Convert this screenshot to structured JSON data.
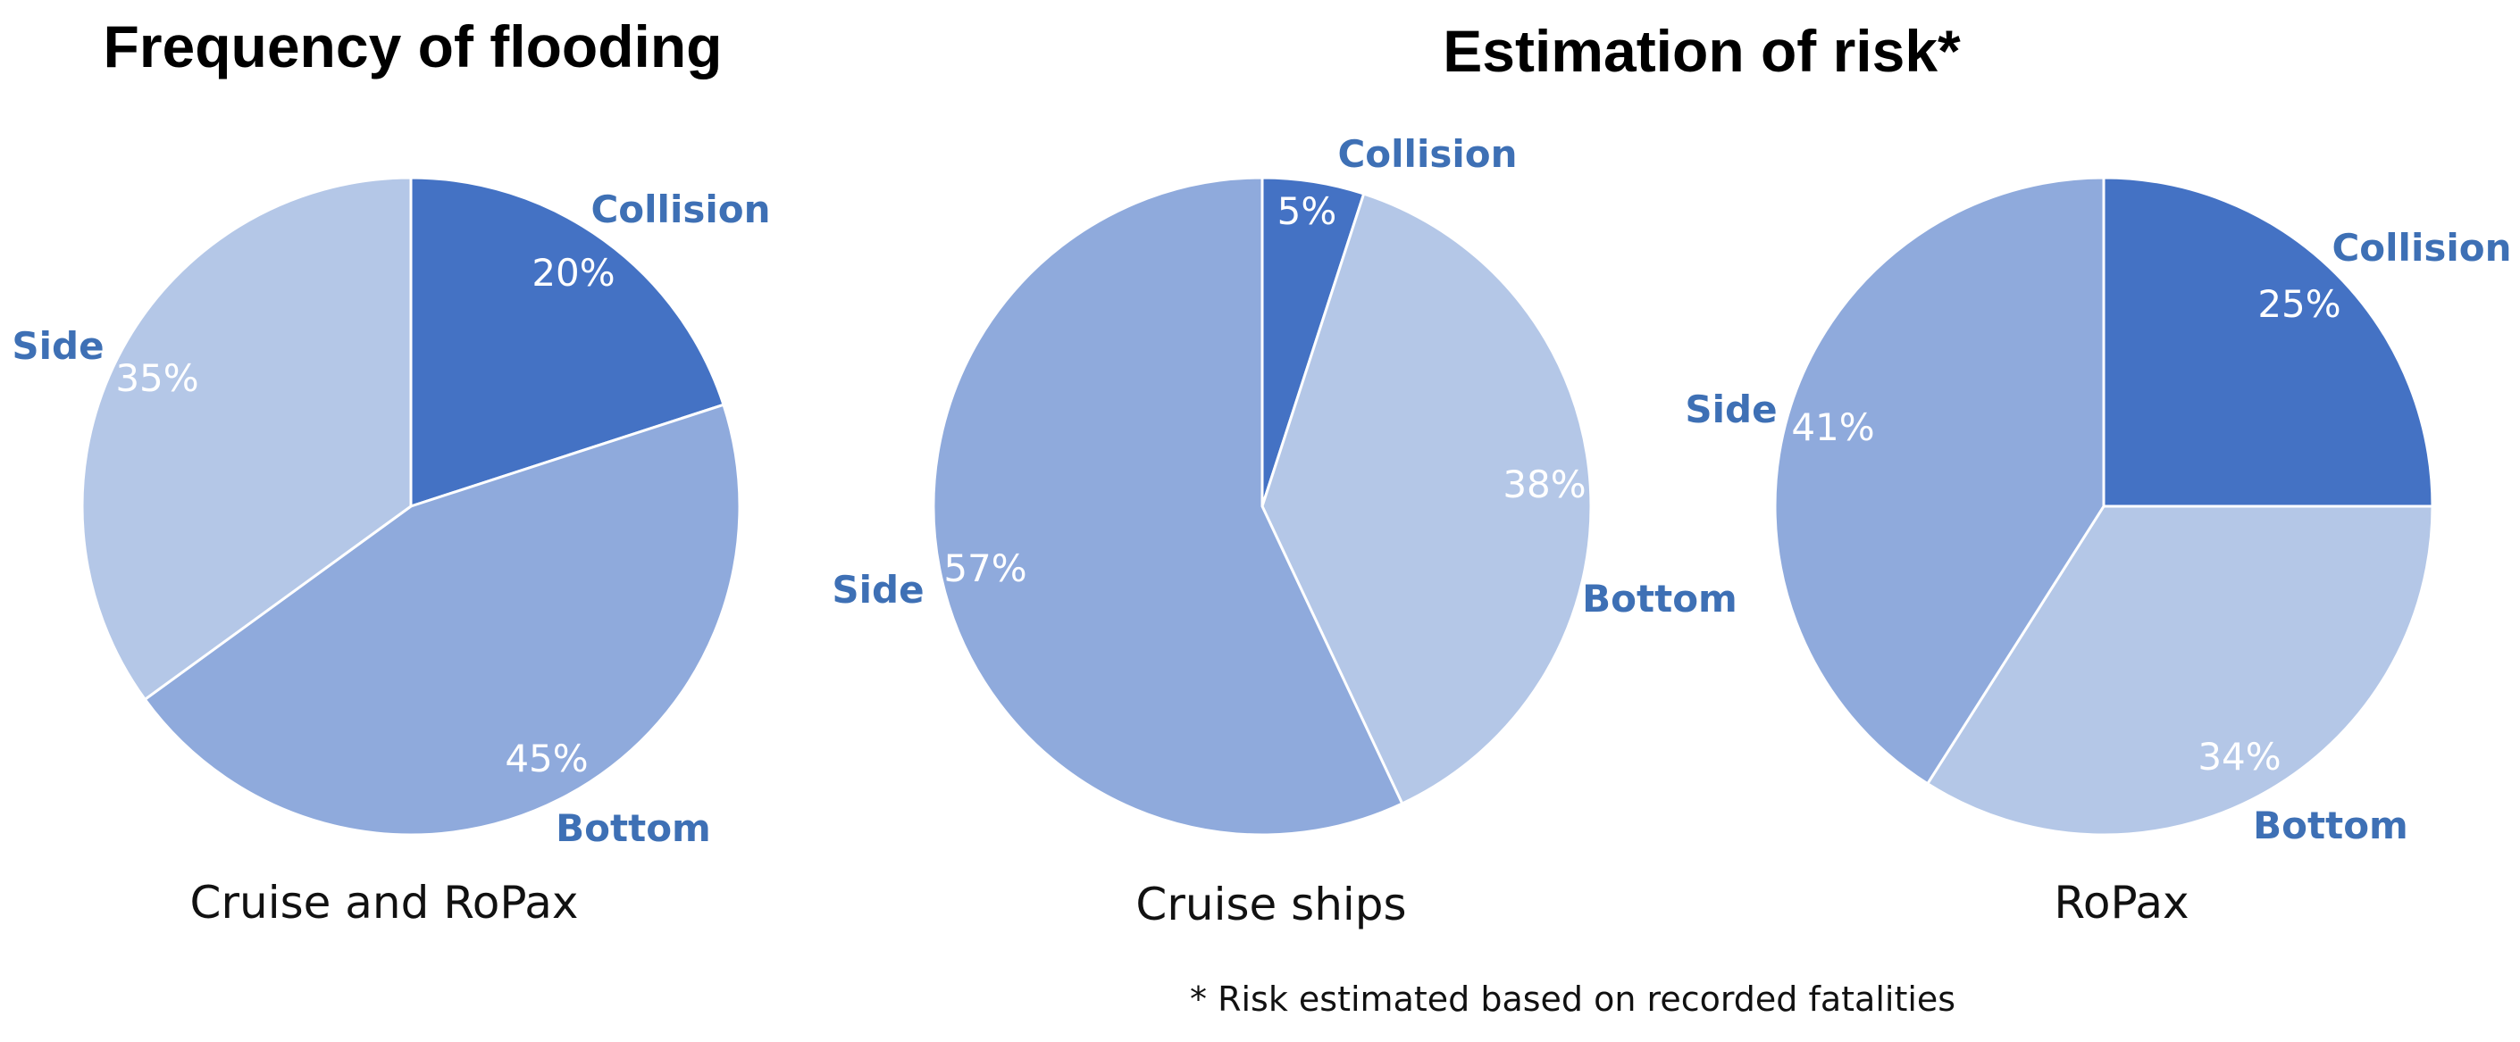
{
  "headings": {
    "left": "Frequency of flooding",
    "right": "Estimation of risk*"
  },
  "footnote": "* Risk estimated based on recorded fatalities",
  "colors": {
    "collision": "#4472C4",
    "bottom_side_mid": "#8FAADC",
    "bottom_side_light": "#B4C7E7",
    "label_text": "#3E70B5"
  },
  "chart_data": [
    {
      "type": "pie",
      "subtitle": "Cruise and RoPax",
      "slices": [
        {
          "label": "Collision",
          "value": 20,
          "pct_text": "20%"
        },
        {
          "label": "Bottom",
          "value": 45,
          "pct_text": "45%"
        },
        {
          "label": "Side",
          "value": 35,
          "pct_text": "35%"
        }
      ]
    },
    {
      "type": "pie",
      "subtitle": "Cruise ships",
      "slices": [
        {
          "label": "Collision",
          "value": 5,
          "pct_text": "5%"
        },
        {
          "label": "Bottom",
          "value": 38,
          "pct_text": "38%"
        },
        {
          "label": "Side",
          "value": 57,
          "pct_text": "57%"
        }
      ]
    },
    {
      "type": "pie",
      "subtitle": "RoPax",
      "slices": [
        {
          "label": "Collision",
          "value": 25,
          "pct_text": "25%"
        },
        {
          "label": "Bottom",
          "value": 34,
          "pct_text": "34%"
        },
        {
          "label": "Side",
          "value": 41,
          "pct_text": "41%"
        }
      ]
    }
  ]
}
